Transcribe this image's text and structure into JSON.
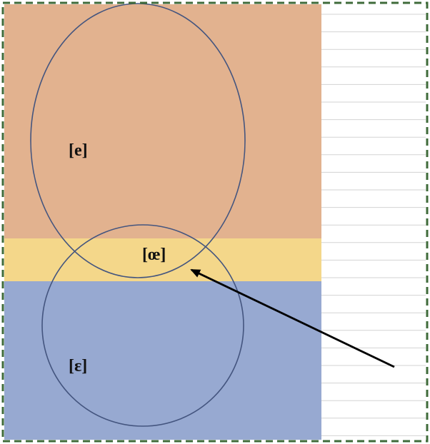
{
  "diagram": {
    "labels": {
      "e": "[e]",
      "oe": "[œ]",
      "epsilon": "[ɛ]"
    },
    "colors": {
      "top_band": "#e2b28f",
      "middle_band": "#f4d78a",
      "bottom_band": "#97a9d1",
      "circle_stroke": "#44557f",
      "frame_dash": "#3f6b3a",
      "grid_line": "#d3d3d3",
      "arrow": "#000000"
    },
    "elements": {
      "top_ellipse_region": "e",
      "bottom_circle_region": "epsilon",
      "overlap_region": "oe",
      "arrow_target": "oe"
    }
  }
}
